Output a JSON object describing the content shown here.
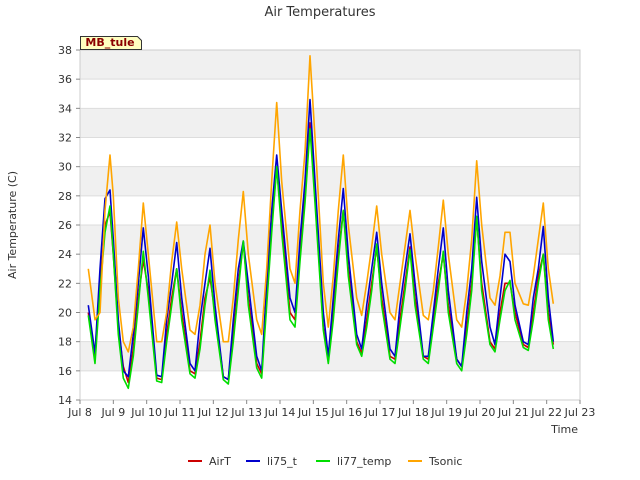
{
  "chart_data": {
    "type": "line",
    "title": "Air Temperatures",
    "xlabel": "Time",
    "ylabel": "Air Temperature (C)",
    "station_label": "MB_tule",
    "xlim": [
      8,
      23
    ],
    "ylim": [
      14,
      38
    ],
    "x_tick_values": [
      8,
      9,
      10,
      11,
      12,
      13,
      14,
      15,
      16,
      17,
      18,
      19,
      20,
      21,
      22,
      23
    ],
    "x_tick_labels": [
      "Jul 8",
      "Jul 9",
      "Jul 10",
      "Jul 11",
      "Jul 12",
      "Jul 13",
      "Jul 14",
      "Jul 15",
      "Jul 16",
      "Jul 17",
      "Jul 18",
      "Jul 19",
      "Jul 20",
      "Jul 21",
      "Jul 22",
      "Jul 23"
    ],
    "y_ticks": [
      14,
      16,
      18,
      20,
      22,
      24,
      26,
      28,
      30,
      32,
      34,
      36,
      38
    ],
    "grid": true,
    "legend_position": "bottom",
    "series": [
      {
        "name": "AirT",
        "color": "#cc0000",
        "x": [
          8.25,
          8.45,
          8.6,
          8.75,
          8.9,
          9.0,
          9.15,
          9.3,
          9.45,
          9.6,
          9.75,
          9.9,
          10.05,
          10.3,
          10.45,
          10.6,
          10.75,
          10.9,
          11.05,
          11.3,
          11.45,
          11.6,
          11.75,
          11.9,
          12.05,
          12.3,
          12.45,
          12.6,
          12.75,
          12.9,
          13.05,
          13.3,
          13.45,
          13.6,
          13.75,
          13.9,
          14.05,
          14.3,
          14.45,
          14.6,
          14.75,
          14.9,
          15.05,
          15.3,
          15.45,
          15.6,
          15.75,
          15.9,
          16.05,
          16.3,
          16.45,
          16.6,
          16.75,
          16.9,
          17.05,
          17.3,
          17.45,
          17.6,
          17.75,
          17.9,
          18.05,
          18.3,
          18.45,
          18.6,
          18.75,
          18.9,
          19.05,
          19.3,
          19.45,
          19.6,
          19.75,
          19.9,
          20.05,
          20.3,
          20.45,
          20.6,
          20.75,
          20.9,
          21.05,
          21.3,
          21.45,
          21.6,
          21.75,
          21.9,
          22.05,
          22.2
        ],
        "values": [
          20.0,
          16.8,
          22.0,
          26.0,
          26.9,
          24.0,
          19.0,
          16.3,
          15.2,
          17.5,
          21.0,
          23.6,
          21.5,
          15.5,
          15.4,
          18.5,
          21.0,
          23.0,
          20.0,
          16.0,
          15.8,
          18.0,
          21.0,
          22.4,
          20.0,
          15.6,
          15.4,
          18.5,
          22.0,
          24.8,
          21.0,
          16.5,
          15.8,
          21.0,
          26.0,
          30.0,
          26.0,
          20.0,
          19.5,
          24.0,
          28.0,
          33.0,
          28.0,
          19.0,
          16.8,
          20.0,
          24.0,
          27.0,
          23.0,
          18.0,
          17.2,
          19.5,
          22.0,
          24.5,
          21.0,
          17.0,
          16.8,
          19.5,
          22.0,
          24.5,
          21.0,
          17.0,
          16.8,
          19.5,
          22.0,
          24.0,
          20.5,
          16.8,
          16.3,
          19.0,
          22.0,
          26.5,
          22.0,
          18.0,
          17.5,
          20.0,
          22.0,
          22.0,
          20.0,
          17.8,
          17.6,
          20.0,
          22.5,
          24.0,
          20.0,
          17.8
        ]
      },
      {
        "name": "li75_t",
        "color": "#0000cc",
        "x": [
          8.25,
          8.45,
          8.6,
          8.75,
          8.9,
          9.0,
          9.15,
          9.3,
          9.45,
          9.6,
          9.75,
          9.9,
          10.05,
          10.3,
          10.45,
          10.6,
          10.75,
          10.9,
          11.05,
          11.3,
          11.45,
          11.6,
          11.75,
          11.9,
          12.05,
          12.3,
          12.45,
          12.6,
          12.75,
          12.9,
          13.05,
          13.3,
          13.45,
          13.6,
          13.75,
          13.9,
          14.05,
          14.3,
          14.45,
          14.6,
          14.75,
          14.9,
          15.05,
          15.3,
          15.45,
          15.6,
          15.75,
          15.9,
          16.05,
          16.3,
          16.45,
          16.6,
          16.75,
          16.9,
          17.05,
          17.3,
          17.45,
          17.6,
          17.75,
          17.9,
          18.05,
          18.3,
          18.45,
          18.6,
          18.75,
          18.9,
          19.05,
          19.3,
          19.45,
          19.6,
          19.75,
          19.9,
          20.05,
          20.3,
          20.45,
          20.6,
          20.75,
          20.9,
          21.05,
          21.3,
          21.45,
          21.6,
          21.75,
          21.9,
          22.05,
          22.2
        ],
        "values": [
          20.5,
          17.2,
          23.0,
          27.8,
          28.4,
          25.0,
          19.5,
          16.0,
          15.6,
          18.5,
          22.0,
          25.8,
          22.5,
          15.7,
          15.6,
          19.5,
          22.0,
          24.8,
          21.0,
          16.5,
          16.0,
          19.5,
          22.0,
          24.4,
          20.5,
          15.6,
          15.4,
          19.5,
          23.0,
          24.9,
          22.0,
          17.0,
          16.0,
          22.0,
          27.0,
          30.8,
          27.0,
          21.0,
          20.0,
          25.0,
          29.0,
          34.6,
          29.0,
          20.0,
          17.0,
          21.0,
          25.0,
          28.5,
          24.0,
          18.5,
          17.5,
          20.5,
          23.0,
          25.5,
          22.0,
          17.5,
          17.0,
          20.5,
          23.0,
          25.4,
          22.0,
          17.0,
          17.0,
          20.0,
          23.0,
          25.8,
          21.5,
          16.8,
          16.3,
          20.0,
          23.0,
          27.9,
          23.5,
          19.0,
          17.8,
          21.0,
          24.0,
          23.5,
          20.5,
          18.0,
          17.8,
          21.0,
          23.0,
          25.9,
          21.0,
          18.0
        ]
      },
      {
        "name": "li77_temp",
        "color": "#00dd00",
        "x": [
          8.25,
          8.45,
          8.6,
          8.75,
          8.9,
          9.0,
          9.15,
          9.3,
          9.45,
          9.6,
          9.75,
          9.9,
          10.05,
          10.3,
          10.45,
          10.6,
          10.75,
          10.9,
          11.05,
          11.3,
          11.45,
          11.6,
          11.75,
          11.9,
          12.05,
          12.3,
          12.45,
          12.6,
          12.75,
          12.9,
          13.05,
          13.3,
          13.45,
          13.6,
          13.75,
          13.9,
          14.05,
          14.3,
          14.45,
          14.6,
          14.75,
          14.9,
          15.05,
          15.3,
          15.45,
          15.6,
          15.75,
          15.9,
          16.05,
          16.3,
          16.45,
          16.6,
          16.75,
          16.9,
          17.05,
          17.3,
          17.45,
          17.6,
          17.75,
          17.9,
          18.05,
          18.3,
          18.45,
          18.6,
          18.75,
          18.9,
          19.05,
          19.3,
          19.45,
          19.6,
          19.75,
          19.9,
          20.05,
          20.3,
          20.45,
          20.6,
          20.75,
          20.9,
          21.05,
          21.3,
          21.45,
          21.6,
          21.75,
          21.9,
          22.05,
          22.2
        ],
        "values": [
          19.8,
          16.5,
          21.5,
          25.5,
          27.3,
          24.0,
          18.5,
          15.5,
          14.8,
          17.0,
          20.5,
          24.2,
          21.0,
          15.3,
          15.2,
          18.0,
          20.5,
          23.0,
          19.5,
          15.8,
          15.5,
          17.5,
          20.5,
          22.9,
          19.5,
          15.4,
          15.1,
          18.0,
          21.5,
          24.9,
          20.5,
          16.2,
          15.5,
          20.5,
          25.5,
          30.0,
          25.5,
          19.5,
          19.0,
          23.5,
          27.5,
          32.6,
          27.5,
          18.8,
          16.5,
          19.5,
          23.5,
          27.0,
          22.5,
          17.8,
          17.0,
          19.0,
          21.5,
          24.7,
          20.5,
          16.8,
          16.5,
          19.0,
          21.5,
          24.3,
          20.5,
          16.8,
          16.5,
          19.0,
          21.5,
          24.2,
          20.0,
          16.5,
          16.0,
          18.5,
          21.5,
          26.6,
          21.5,
          17.8,
          17.3,
          19.5,
          21.5,
          22.2,
          19.5,
          17.6,
          17.4,
          19.5,
          22.0,
          24.0,
          19.5,
          17.5
        ]
      },
      {
        "name": "Tsonic",
        "color": "#ffa500",
        "x": [
          8.25,
          8.45,
          8.6,
          8.75,
          8.9,
          9.0,
          9.15,
          9.3,
          9.45,
          9.6,
          9.75,
          9.9,
          10.05,
          10.3,
          10.45,
          10.6,
          10.75,
          10.9,
          11.05,
          11.3,
          11.45,
          11.6,
          11.75,
          11.9,
          12.05,
          12.3,
          12.45,
          12.6,
          12.75,
          12.9,
          13.05,
          13.3,
          13.45,
          13.6,
          13.75,
          13.9,
          14.05,
          14.3,
          14.45,
          14.6,
          14.75,
          14.9,
          15.05,
          15.3,
          15.45,
          15.6,
          15.75,
          15.9,
          16.05,
          16.3,
          16.45,
          16.6,
          16.75,
          16.9,
          17.05,
          17.3,
          17.45,
          17.6,
          17.75,
          17.9,
          18.05,
          18.3,
          18.45,
          18.6,
          18.75,
          18.9,
          19.05,
          19.3,
          19.45,
          19.6,
          19.75,
          19.9,
          20.05,
          20.3,
          20.45,
          20.6,
          20.75,
          20.9,
          21.05,
          21.3,
          21.45,
          21.6,
          21.75,
          21.9,
          22.05,
          22.2
        ],
        "values": [
          23.0,
          19.5,
          20.0,
          27.0,
          30.8,
          28.0,
          21.0,
          18.0,
          17.3,
          19.0,
          23.0,
          27.5,
          24.0,
          18.0,
          18.0,
          20.0,
          23.5,
          26.2,
          23.0,
          18.8,
          18.5,
          20.5,
          24.0,
          26.0,
          22.0,
          18.0,
          18.0,
          21.0,
          25.0,
          28.3,
          24.0,
          19.5,
          18.5,
          23.0,
          29.0,
          34.4,
          29.0,
          23.0,
          22.0,
          27.0,
          31.0,
          37.6,
          32.0,
          22.0,
          19.0,
          22.5,
          27.0,
          30.8,
          26.0,
          21.0,
          19.8,
          22.0,
          24.5,
          27.3,
          24.0,
          20.0,
          19.5,
          22.0,
          24.5,
          27.0,
          24.0,
          19.8,
          19.5,
          21.5,
          24.5,
          27.7,
          24.0,
          19.5,
          19.0,
          21.5,
          25.0,
          30.4,
          26.0,
          21.0,
          20.5,
          22.5,
          25.5,
          25.5,
          22.0,
          20.6,
          20.5,
          22.5,
          25.0,
          27.5,
          23.0,
          20.6
        ]
      }
    ]
  }
}
